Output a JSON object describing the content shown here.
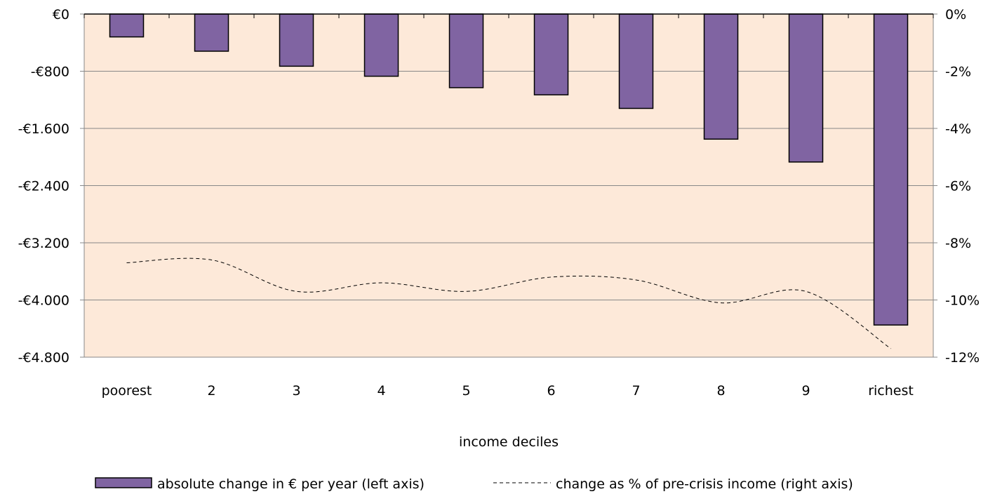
{
  "chart_data": {
    "type": "bar",
    "title": "",
    "xlabel": "income deciles",
    "categories": [
      "poorest",
      "2",
      "3",
      "4",
      "5",
      "6",
      "7",
      "8",
      "9",
      "richest"
    ],
    "series": [
      {
        "name": "absolute change in € per year (left axis)",
        "type": "bar",
        "axis": "left",
        "color": "#8064A2",
        "values": [
          -320,
          -520,
          -730,
          -870,
          -1030,
          -1130,
          -1320,
          -1750,
          -2070,
          -4350
        ]
      },
      {
        "name": "change as % of pre-crisis income (right axis)",
        "type": "line",
        "axis": "right",
        "style": "dashed",
        "color": "#000000",
        "values": [
          -8.7,
          -8.6,
          -9.7,
          -9.4,
          -9.7,
          -9.2,
          -9.3,
          -10.1,
          -9.7,
          -11.7
        ]
      }
    ],
    "y_left": {
      "lim": [
        -4800,
        0
      ],
      "ticks": [
        0,
        -800,
        -1600,
        -2400,
        -3200,
        -4000,
        -4800
      ],
      "tick_labels": [
        "€0",
        "-€800",
        "-€1.600",
        "-€2.400",
        "-€3.200",
        "-€4.000",
        "-€4.800"
      ]
    },
    "y_right": {
      "lim": [
        -12,
        0
      ],
      "ticks": [
        0,
        -2,
        -4,
        -6,
        -8,
        -10,
        -12
      ],
      "tick_labels": [
        "0%",
        "-2%",
        "-4%",
        "-6%",
        "-8%",
        "-10%",
        "-12%"
      ]
    },
    "grid": true,
    "legend_position": "bottom",
    "plot_background": "#FDE9D9"
  }
}
